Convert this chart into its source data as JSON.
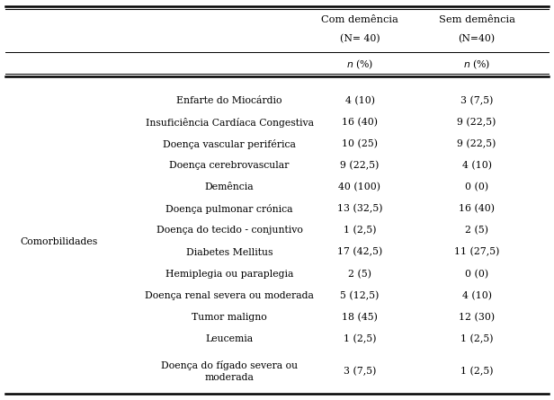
{
  "col3_header": "Com demência",
  "col4_header": "Sem demência",
  "col3_subheader": "(N= 40)",
  "col4_subheader": "(N=40)",
  "col3_n": "n (%)",
  "col4_n": "n (%)",
  "row_label": "Comorbilidades",
  "rows": [
    [
      "Enfarte do Miocárdio",
      "4 (10)",
      "3 (7,5)"
    ],
    [
      "Insuficiência Cardíaca Congestiva",
      "16 (40)",
      "9 (22,5)"
    ],
    [
      "Doença vascular periférica",
      "10 (25)",
      "9 (22,5)"
    ],
    [
      "Doença cerebrovascular",
      "9 (22,5)",
      "4 (10)"
    ],
    [
      "Demência",
      "40 (100)",
      "0 (0)"
    ],
    [
      "Doença pulmonar crónica",
      "13 (32,5)",
      "16 (40)"
    ],
    [
      "Doença do tecido - conjuntivo",
      "1 (2,5)",
      "2 (5)"
    ],
    [
      "Diabetes Mellitus",
      "17 (42,5)",
      "11 (27,5)"
    ],
    [
      "Hemiplegia ou paraplegia",
      "2 (5)",
      "0 (0)"
    ],
    [
      "Doença renal severa ou moderada",
      "5 (12,5)",
      "4 (10)"
    ],
    [
      "Tumor maligno",
      "18 (45)",
      "12 (30)"
    ],
    [
      "Leucemia",
      "1 (2,5)",
      "1 (2,5)"
    ],
    [
      "Doença do fígado severa ou\nmoderada",
      "3 (7,5)",
      "1 (2,5)"
    ]
  ],
  "bg_color": "#ffffff",
  "text_color": "#000000",
  "font_size": 7.8,
  "header_font_size": 8.2
}
